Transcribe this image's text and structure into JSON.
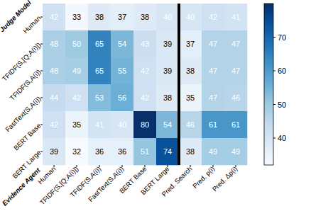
{
  "chart_data": {
    "type": "heatmap",
    "x_label": "Evidence Agent",
    "y_label": "Judge Model",
    "x": [
      "Human",
      "TFIDF(S,[Q;A(i)])",
      "TFIDF(S,A(i))",
      "FastText(S,A(i))",
      "BERT Base",
      "BERT Large",
      "Pred. Search",
      "Pred. p(i)",
      "Pred. Δp(i)"
    ],
    "y": [
      "Human",
      "TFIDF(S,[Q;A(i)])",
      "TFIDF(S,A(i))",
      "FastText(S,A(i))",
      "BERT Base",
      "BERT Large"
    ],
    "values": [
      [
        42,
        33,
        38,
        37,
        38,
        40,
        40,
        42,
        41
      ],
      [
        48,
        50,
        65,
        54,
        43,
        39,
        37,
        47,
        47
      ],
      [
        48,
        49,
        65,
        55,
        42,
        39,
        38,
        47,
        47
      ],
      [
        44,
        42,
        53,
        56,
        42,
        38,
        35,
        47,
        46
      ],
      [
        42,
        35,
        41,
        40,
        80,
        54,
        46,
        61,
        61
      ],
      [
        39,
        32,
        36,
        36,
        51,
        74,
        38,
        49,
        49
      ]
    ],
    "data_labels": true,
    "colorbar_range": [
      32,
      80
    ],
    "colorbar_ticks": [
      40,
      50,
      60,
      70
    ]
  }
}
